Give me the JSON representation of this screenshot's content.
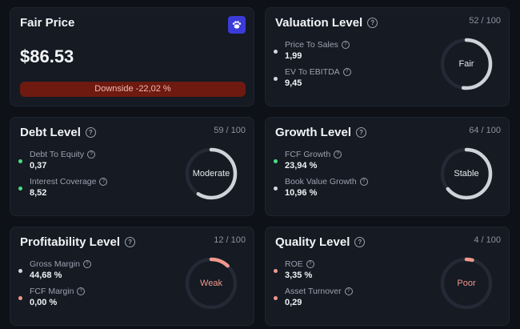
{
  "fair_price": {
    "title": "Fair Price",
    "price": "$86.53",
    "downside": "Downside -22,02 %",
    "button_icon": "paw-icon"
  },
  "valuation": {
    "title": "Valuation Level",
    "score": "52 / 100",
    "score_fraction": 0.52,
    "gauge_label": "Fair",
    "metrics": [
      {
        "label": "Price To Sales",
        "value": "1,99"
      },
      {
        "label": "EV To EBITDA",
        "value": "9,45"
      }
    ]
  },
  "debt": {
    "title": "Debt Level",
    "score": "59 / 100",
    "score_fraction": 0.59,
    "gauge_label": "Moderate",
    "metrics": [
      {
        "label": "Debt To Equity",
        "value": "0,37"
      },
      {
        "label": "Interest Coverage",
        "value": "8,52"
      }
    ]
  },
  "growth": {
    "title": "Growth Level",
    "score": "64 / 100",
    "score_fraction": 0.64,
    "gauge_label": "Stable",
    "metrics": [
      {
        "label": "FCF Growth",
        "value": "23,94 %"
      },
      {
        "label": "Book Value Growth",
        "value": "10,96 %"
      }
    ]
  },
  "profitability": {
    "title": "Profitability Level",
    "score": "12 / 100",
    "score_fraction": 0.12,
    "gauge_label": "Weak",
    "metrics": [
      {
        "label": "Gross Margin",
        "value": "44,68 %"
      },
      {
        "label": "FCF Margin",
        "value": "0,00 %"
      }
    ]
  },
  "quality": {
    "title": "Quality Level",
    "score": "4 / 100",
    "score_fraction": 0.04,
    "gauge_label": "Poor",
    "metrics": [
      {
        "label": "ROE",
        "value": "3,35 %"
      },
      {
        "label": "Asset Turnover",
        "value": "0,29"
      }
    ]
  },
  "colors": {
    "positive": "#4ade80",
    "neutral": "#d4d7dd",
    "negative": "#f0988c",
    "track": "#232a35",
    "gauge_neutral": "#cfd2d8",
    "gauge_weak": "#f0988c",
    "downside_bg": "#6e1a10"
  }
}
